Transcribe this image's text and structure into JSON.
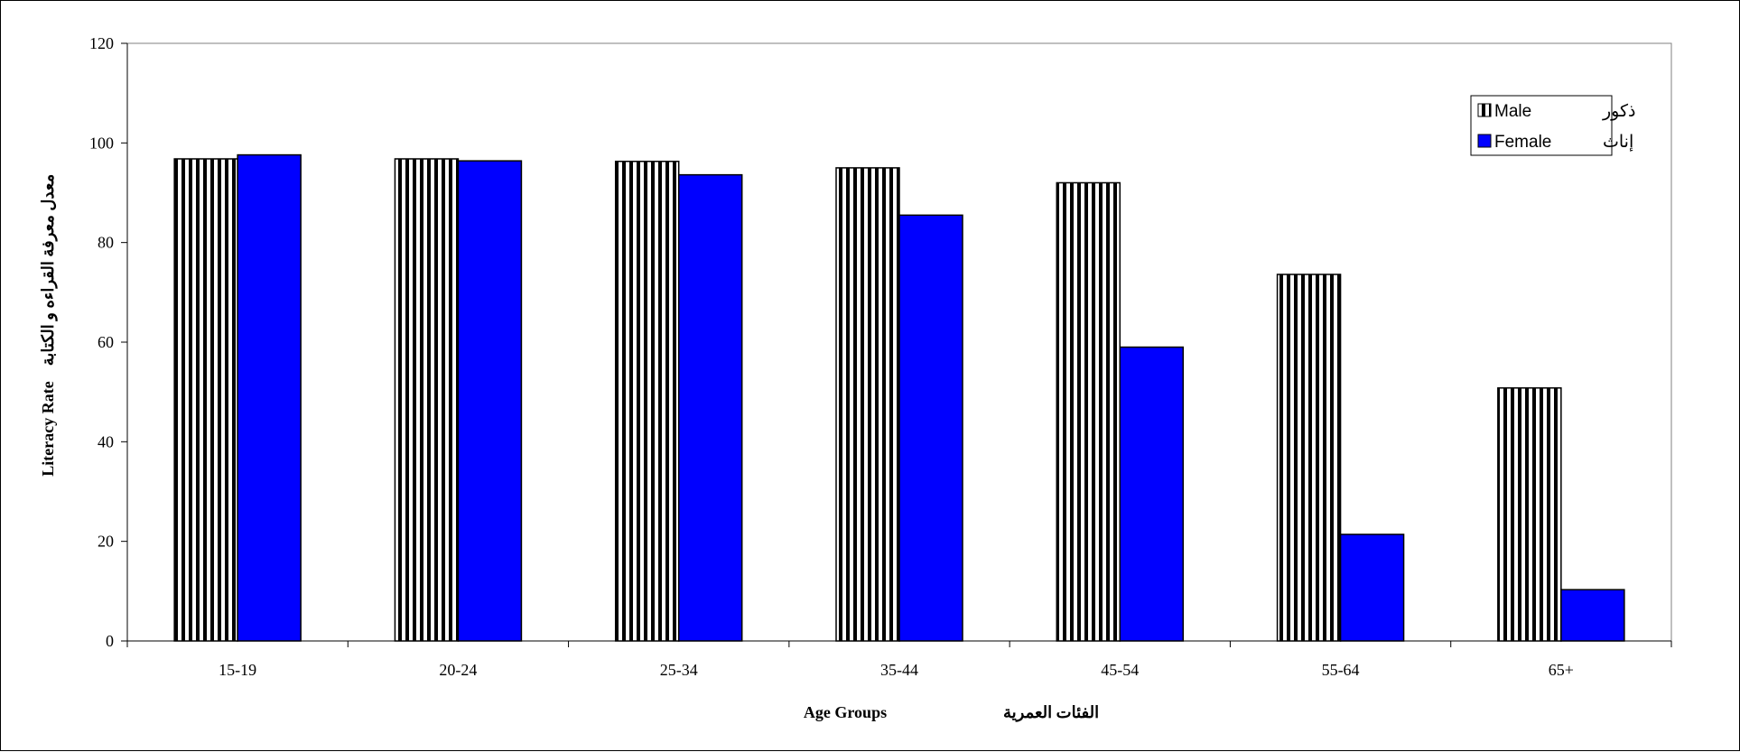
{
  "chart_data": {
    "type": "bar",
    "categories": [
      "15-19",
      "20-24",
      "25-34",
      "35-44",
      "45-54",
      "55-64",
      "65+"
    ],
    "series": [
      {
        "name": "Male",
        "name_ar": "ذكور",
        "values": [
          96.8,
          96.8,
          96.3,
          95.0,
          92.0,
          73.6,
          50.8
        ],
        "pattern": "vertical-stripes",
        "color": "#000000"
      },
      {
        "name": "Female",
        "name_ar": "إناث",
        "values": [
          97.6,
          96.4,
          93.6,
          85.5,
          59.0,
          21.4,
          10.3
        ],
        "pattern": "solid",
        "color": "#0000ff"
      }
    ],
    "xlabel_en": "Age Groups",
    "xlabel_ar": "الفئات العمرية",
    "ylabel_en": "Literacy Rate",
    "ylabel_ar": "معدل معرفة القراءه و الكتابة",
    "ylim": [
      0,
      120
    ],
    "yticks": [
      0,
      20,
      40,
      60,
      80,
      100,
      120
    ],
    "legend_position": "top-right",
    "grid": false
  }
}
